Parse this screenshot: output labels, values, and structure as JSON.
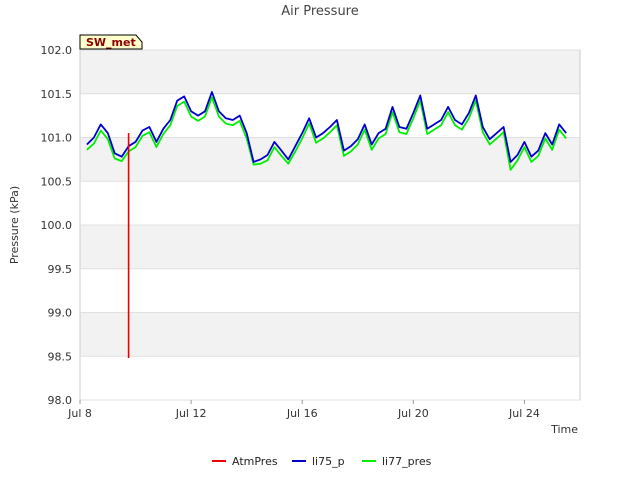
{
  "chart_data": {
    "type": "line",
    "title": "Air Pressure",
    "badge": "SW_met",
    "xlabel": "Time",
    "ylabel": "Pressure (kPa)",
    "ylim": [
      98.0,
      102.0
    ],
    "xlim": [
      "2024-07-08",
      "2024-07-26"
    ],
    "y_ticks": [
      "98.0",
      "98.5",
      "99.0",
      "99.5",
      "100.0",
      "100.5",
      "101.0",
      "101.5",
      "102.0"
    ],
    "x_ticks": [
      "Jul 8",
      "Jul 12",
      "Jul 16",
      "Jul 20",
      "Jul 24"
    ],
    "x_tick_dates": [
      "2024-07-08",
      "2024-07-12",
      "2024-07-16",
      "2024-07-20",
      "2024-07-24"
    ],
    "grid": true,
    "legend_position": "bottom",
    "x": [
      "2024-07-08 06:00",
      "2024-07-08 12:00",
      "2024-07-08 18:00",
      "2024-07-09 00:00",
      "2024-07-09 06:00",
      "2024-07-09 12:00",
      "2024-07-09 18:00",
      "2024-07-10 00:00",
      "2024-07-10 06:00",
      "2024-07-10 12:00",
      "2024-07-10 18:00",
      "2024-07-11 00:00",
      "2024-07-11 06:00",
      "2024-07-11 12:00",
      "2024-07-11 18:00",
      "2024-07-12 00:00",
      "2024-07-12 06:00",
      "2024-07-12 12:00",
      "2024-07-12 18:00",
      "2024-07-13 00:00",
      "2024-07-13 06:00",
      "2024-07-13 12:00",
      "2024-07-13 18:00",
      "2024-07-14 00:00",
      "2024-07-14 06:00",
      "2024-07-14 12:00",
      "2024-07-14 18:00",
      "2024-07-15 00:00",
      "2024-07-15 06:00",
      "2024-07-15 12:00",
      "2024-07-15 18:00",
      "2024-07-16 00:00",
      "2024-07-16 06:00",
      "2024-07-16 12:00",
      "2024-07-16 18:00",
      "2024-07-17 00:00",
      "2024-07-17 06:00",
      "2024-07-17 12:00",
      "2024-07-17 18:00",
      "2024-07-18 00:00",
      "2024-07-18 06:00",
      "2024-07-18 12:00",
      "2024-07-18 18:00",
      "2024-07-19 00:00",
      "2024-07-19 06:00",
      "2024-07-19 12:00",
      "2024-07-19 18:00",
      "2024-07-20 00:00",
      "2024-07-20 06:00",
      "2024-07-20 12:00",
      "2024-07-20 18:00",
      "2024-07-21 00:00",
      "2024-07-21 06:00",
      "2024-07-21 12:00",
      "2024-07-21 18:00",
      "2024-07-22 00:00",
      "2024-07-22 06:00",
      "2024-07-22 12:00",
      "2024-07-22 18:00",
      "2024-07-23 00:00",
      "2024-07-23 06:00",
      "2024-07-23 12:00",
      "2024-07-23 18:00",
      "2024-07-24 00:00",
      "2024-07-24 06:00",
      "2024-07-24 12:00",
      "2024-07-24 18:00",
      "2024-07-25 00:00",
      "2024-07-25 06:00",
      "2024-07-25 12:00"
    ],
    "series": [
      {
        "name": "AtmPres",
        "color": "#ee0000",
        "x": [
          "2024-07-09 18:00",
          "2024-07-09 18:00"
        ],
        "values": [
          101.05,
          98.48
        ]
      },
      {
        "name": "li75_p",
        "color": "#0000cc",
        "values": [
          100.92,
          101.0,
          101.15,
          101.05,
          100.82,
          100.78,
          100.9,
          100.95,
          101.08,
          101.12,
          100.95,
          101.1,
          101.2,
          101.42,
          101.47,
          101.3,
          101.25,
          101.3,
          101.52,
          101.3,
          101.22,
          101.2,
          101.25,
          101.05,
          100.72,
          100.75,
          100.8,
          100.95,
          100.85,
          100.75,
          100.9,
          101.05,
          101.22,
          101.0,
          101.05,
          101.12,
          101.2,
          100.85,
          100.9,
          100.98,
          101.15,
          100.92,
          101.05,
          101.1,
          101.35,
          101.12,
          101.1,
          101.28,
          101.48,
          101.1,
          101.15,
          101.2,
          101.35,
          101.2,
          101.15,
          101.28,
          101.48,
          101.12,
          100.98,
          101.05,
          101.12,
          100.72,
          100.8,
          100.95,
          100.78,
          100.85,
          101.05,
          100.92,
          101.15,
          101.05
        ]
      },
      {
        "name": "li77_pres",
        "color": "#00ee00",
        "values": [
          100.86,
          100.93,
          101.08,
          100.98,
          100.76,
          100.73,
          100.84,
          100.89,
          101.02,
          101.06,
          100.89,
          101.04,
          101.14,
          101.36,
          101.41,
          101.24,
          101.19,
          101.24,
          101.46,
          101.24,
          101.16,
          101.14,
          101.19,
          100.99,
          100.69,
          100.7,
          100.74,
          100.89,
          100.79,
          100.7,
          100.84,
          100.99,
          101.16,
          100.94,
          100.99,
          101.06,
          101.14,
          100.79,
          100.84,
          100.92,
          101.09,
          100.86,
          100.99,
          101.04,
          101.29,
          101.06,
          101.04,
          101.22,
          101.42,
          101.04,
          101.09,
          101.14,
          101.29,
          101.14,
          101.09,
          101.22,
          101.42,
          101.06,
          100.92,
          100.99,
          101.06,
          100.63,
          100.74,
          100.89,
          100.72,
          100.79,
          100.99,
          100.86,
          101.09,
          100.99
        ]
      }
    ]
  }
}
